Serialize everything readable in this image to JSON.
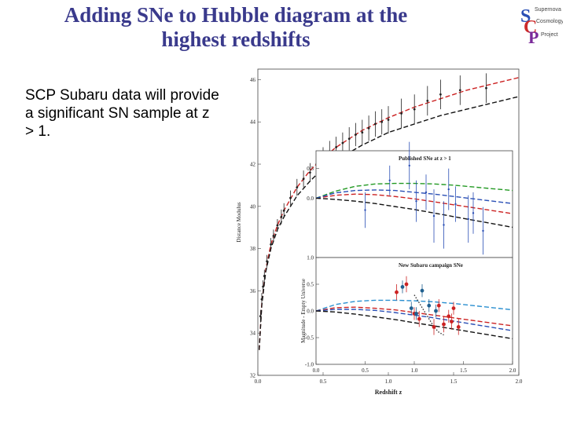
{
  "slide": {
    "title_line1": "Adding SNe to Hubble diagram at the",
    "title_line2": "highest redshifts",
    "bullet_text": "SCP Subaru data will provide a significant SN sample at z > 1."
  },
  "logo": {
    "letters": [
      "S",
      "C",
      "P"
    ],
    "words": [
      "Supernova",
      "Cosmology",
      "Project"
    ],
    "colors": {
      "S": "#2a4fb5",
      "C": "#cc2a2a",
      "P": "#7a2a9a"
    }
  },
  "chart_data": [
    {
      "type": "scatter",
      "title": "",
      "xlabel": "Redshift z",
      "ylabel": "Distance Modulus",
      "xlim": [
        0.0,
        2.0
      ],
      "ylim": [
        32,
        46.5
      ],
      "xticks": [
        0.0,
        0.5,
        1.0,
        1.5,
        2.0
      ],
      "xtick_labels": [
        "0.0",
        "0.5",
        "1.0",
        "1.5",
        "2.0"
      ],
      "yticks": [
        32,
        34,
        36,
        38,
        40,
        42,
        44,
        46
      ],
      "ytick_labels": [
        "32",
        "34",
        "36",
        "38",
        "40",
        "42",
        "44",
        "46"
      ],
      "series": [
        {
          "style": "curve",
          "color": "#cc2222",
          "dash": "dashed",
          "x": [
            0.01,
            0.03,
            0.06,
            0.1,
            0.15,
            0.2,
            0.3,
            0.4,
            0.5,
            0.6,
            0.8,
            1.0,
            1.2,
            1.4,
            1.6,
            1.8,
            2.0
          ],
          "y": [
            33.2,
            35.4,
            37.0,
            38.2,
            39.1,
            39.8,
            40.9,
            41.7,
            42.3,
            42.8,
            43.6,
            44.2,
            44.7,
            45.1,
            45.5,
            45.8,
            46.1
          ]
        },
        {
          "style": "curve",
          "color": "#111111",
          "dash": "dashed",
          "x": [
            0.01,
            0.03,
            0.06,
            0.1,
            0.15,
            0.2,
            0.3,
            0.4,
            0.5,
            0.6,
            0.8,
            1.0,
            1.2,
            1.4,
            1.6,
            1.8,
            2.0
          ],
          "y": [
            33.2,
            35.3,
            36.9,
            38.0,
            38.9,
            39.5,
            40.5,
            41.2,
            41.8,
            42.2,
            42.9,
            43.5,
            43.9,
            44.3,
            44.6,
            44.9,
            45.2
          ]
        },
        {
          "style": "points",
          "color": "#222222",
          "x": [
            0.02,
            0.03,
            0.04,
            0.05,
            0.07,
            0.1,
            0.12,
            0.15,
            0.18,
            0.2,
            0.25,
            0.3,
            0.35,
            0.4,
            0.45,
            0.5,
            0.55,
            0.6,
            0.65,
            0.7,
            0.75,
            0.8,
            0.85,
            0.9,
            0.95,
            1.0,
            1.1,
            1.2,
            1.3,
            1.4,
            1.55,
            1.75
          ],
          "y": [
            34.8,
            35.6,
            36.2,
            36.7,
            37.4,
            38.2,
            38.6,
            39.1,
            39.5,
            39.8,
            40.4,
            40.9,
            41.3,
            41.6,
            42.0,
            42.3,
            42.6,
            42.8,
            43.0,
            43.2,
            43.4,
            43.5,
            43.7,
            43.9,
            44.0,
            44.1,
            44.4,
            44.6,
            45.0,
            45.3,
            45.5,
            45.6
          ],
          "err": [
            0.3,
            0.3,
            0.3,
            0.3,
            0.3,
            0.3,
            0.3,
            0.3,
            0.35,
            0.35,
            0.35,
            0.4,
            0.4,
            0.45,
            0.45,
            0.5,
            0.5,
            0.5,
            0.5,
            0.55,
            0.55,
            0.6,
            0.6,
            0.6,
            0.6,
            0.65,
            0.7,
            0.7,
            0.7,
            0.7,
            0.7,
            0.7
          ]
        }
      ]
    },
    {
      "type": "scatter",
      "title": "Published SNe at z > 1",
      "xlim": [
        0.0,
        2.0
      ],
      "ylim": [
        -1.0,
        0.8
      ],
      "yticks": [
        0.0,
        0.5
      ],
      "ytick_labels": [
        "0.0",
        "0.5"
      ],
      "series": [
        {
          "style": "curve",
          "color": "#229922",
          "dash": "dashed",
          "x": [
            0.0,
            0.2,
            0.4,
            0.6,
            0.8,
            1.0,
            1.2,
            1.4,
            1.6,
            1.8,
            2.0
          ],
          "y": [
            0.0,
            0.12,
            0.2,
            0.24,
            0.25,
            0.25,
            0.24,
            0.22,
            0.19,
            0.16,
            0.13
          ]
        },
        {
          "style": "curve",
          "color": "#cc2222",
          "dash": "dashed",
          "x": [
            0.0,
            0.2,
            0.4,
            0.6,
            0.8,
            1.0,
            1.2,
            1.4,
            1.6,
            1.8,
            2.0
          ],
          "y": [
            0.0,
            0.05,
            0.07,
            0.06,
            0.03,
            -0.01,
            -0.06,
            -0.11,
            -0.16,
            -0.21,
            -0.26
          ]
        },
        {
          "style": "curve",
          "color": "#2a4fb5",
          "dash": "dashed",
          "x": [
            0.0,
            0.2,
            0.4,
            0.6,
            0.8,
            1.0,
            1.2,
            1.4,
            1.6,
            1.8,
            2.0
          ],
          "y": [
            0.0,
            0.09,
            0.13,
            0.14,
            0.13,
            0.1,
            0.07,
            0.03,
            -0.01,
            -0.05,
            -0.09
          ]
        },
        {
          "style": "curve",
          "color": "#111111",
          "dash": "dashed",
          "x": [
            0.0,
            0.2,
            0.4,
            0.6,
            0.8,
            1.0,
            1.2,
            1.4,
            1.6,
            1.8,
            2.0
          ],
          "y": [
            0.0,
            -0.02,
            -0.05,
            -0.09,
            -0.14,
            -0.19,
            -0.25,
            -0.31,
            -0.37,
            -0.43,
            -0.49
          ]
        },
        {
          "style": "points",
          "color": "#2a4fb5",
          "x": [
            0.5,
            0.75,
            0.95,
            1.02,
            1.12,
            1.2,
            1.3,
            1.35,
            1.42,
            1.55,
            1.6,
            1.7
          ],
          "y": [
            -0.2,
            0.3,
            0.55,
            -0.05,
            0.1,
            -0.3,
            -0.45,
            0.15,
            -0.1,
            -0.35,
            -0.25,
            -0.55
          ],
          "err": [
            0.3,
            0.25,
            0.4,
            0.35,
            0.3,
            0.45,
            0.4,
            0.35,
            0.3,
            0.4,
            0.35,
            0.4
          ]
        }
      ]
    },
    {
      "type": "scatter",
      "title": "New Subaru campaign SNe",
      "xlabel": "",
      "ylabel": "Magnitude - Empty Universe",
      "xlim": [
        0.0,
        2.0
      ],
      "ylim": [
        -1.0,
        1.0
      ],
      "xticks": [
        0.0,
        0.5,
        1.0,
        1.5,
        2.0
      ],
      "xtick_labels": [
        "0.0",
        "0.5",
        "1.0",
        "1.5",
        "2.0"
      ],
      "yticks": [
        -1.0,
        -0.5,
        0.0,
        0.5,
        1.0
      ],
      "ytick_labels": [
        "-1.0",
        "-0.5",
        "0.0",
        "0.5",
        "1.0"
      ],
      "series": [
        {
          "style": "curve",
          "color": "#2a8fd0",
          "dash": "dashed",
          "x": [
            0.0,
            0.2,
            0.4,
            0.6,
            0.8,
            1.0,
            1.2,
            1.4,
            1.6,
            1.8,
            2.0
          ],
          "y": [
            0.0,
            0.12,
            0.18,
            0.2,
            0.2,
            0.19,
            0.17,
            0.14,
            0.1,
            0.06,
            0.02
          ]
        },
        {
          "style": "curve",
          "color": "#cc2222",
          "dash": "dashed",
          "x": [
            0.0,
            0.2,
            0.4,
            0.6,
            0.8,
            1.0,
            1.2,
            1.4,
            1.6,
            1.8,
            2.0
          ],
          "y": [
            0.0,
            0.06,
            0.07,
            0.05,
            0.02,
            -0.03,
            -0.08,
            -0.13,
            -0.18,
            -0.23,
            -0.28
          ]
        },
        {
          "style": "curve",
          "color": "#2a4fb5",
          "dash": "dashed",
          "x": [
            0.0,
            0.2,
            0.4,
            0.6,
            0.8,
            1.0,
            1.2,
            1.4,
            1.6,
            1.8,
            2.0
          ],
          "y": [
            0.0,
            0.03,
            0.03,
            0.01,
            -0.03,
            -0.08,
            -0.13,
            -0.19,
            -0.25,
            -0.31,
            -0.37
          ]
        },
        {
          "style": "curve",
          "color": "#111111",
          "dash": "dashed",
          "x": [
            0.0,
            0.2,
            0.4,
            0.6,
            0.8,
            1.0,
            1.2,
            1.4,
            1.6,
            1.8,
            2.0
          ],
          "y": [
            0.0,
            -0.02,
            -0.06,
            -0.11,
            -0.16,
            -0.22,
            -0.28,
            -0.34,
            -0.4,
            -0.46,
            -0.52
          ]
        },
        {
          "style": "curve",
          "color": "#333333",
          "dash": "dotted",
          "x": [
            1.0,
            1.05,
            1.1,
            1.15,
            1.2,
            1.25,
            1.3
          ],
          "y": [
            0.3,
            0.15,
            0.0,
            -0.15,
            -0.3,
            -0.4,
            -0.45
          ]
        },
        {
          "style": "points",
          "color": "#cc2222",
          "x": [
            0.82,
            0.92,
            1.0,
            1.05,
            1.2,
            1.25,
            1.3,
            1.35,
            1.38,
            1.4,
            1.45
          ],
          "y": [
            0.35,
            0.5,
            -0.05,
            -0.15,
            -0.3,
            0.1,
            -0.25,
            -0.1,
            -0.2,
            0.05,
            -0.3
          ],
          "err": [
            0.15,
            0.15,
            0.12,
            0.15,
            0.15,
            0.12,
            0.15,
            0.12,
            0.15,
            0.12,
            0.15
          ]
        },
        {
          "style": "points",
          "color": "#1f5f8f",
          "x": [
            0.88,
            0.97,
            1.02,
            1.08,
            1.15,
            1.22
          ],
          "y": [
            0.45,
            0.05,
            -0.05,
            0.38,
            0.1,
            0.0
          ],
          "err": [
            0.12,
            0.12,
            0.12,
            0.12,
            0.12,
            0.12
          ]
        }
      ]
    }
  ]
}
